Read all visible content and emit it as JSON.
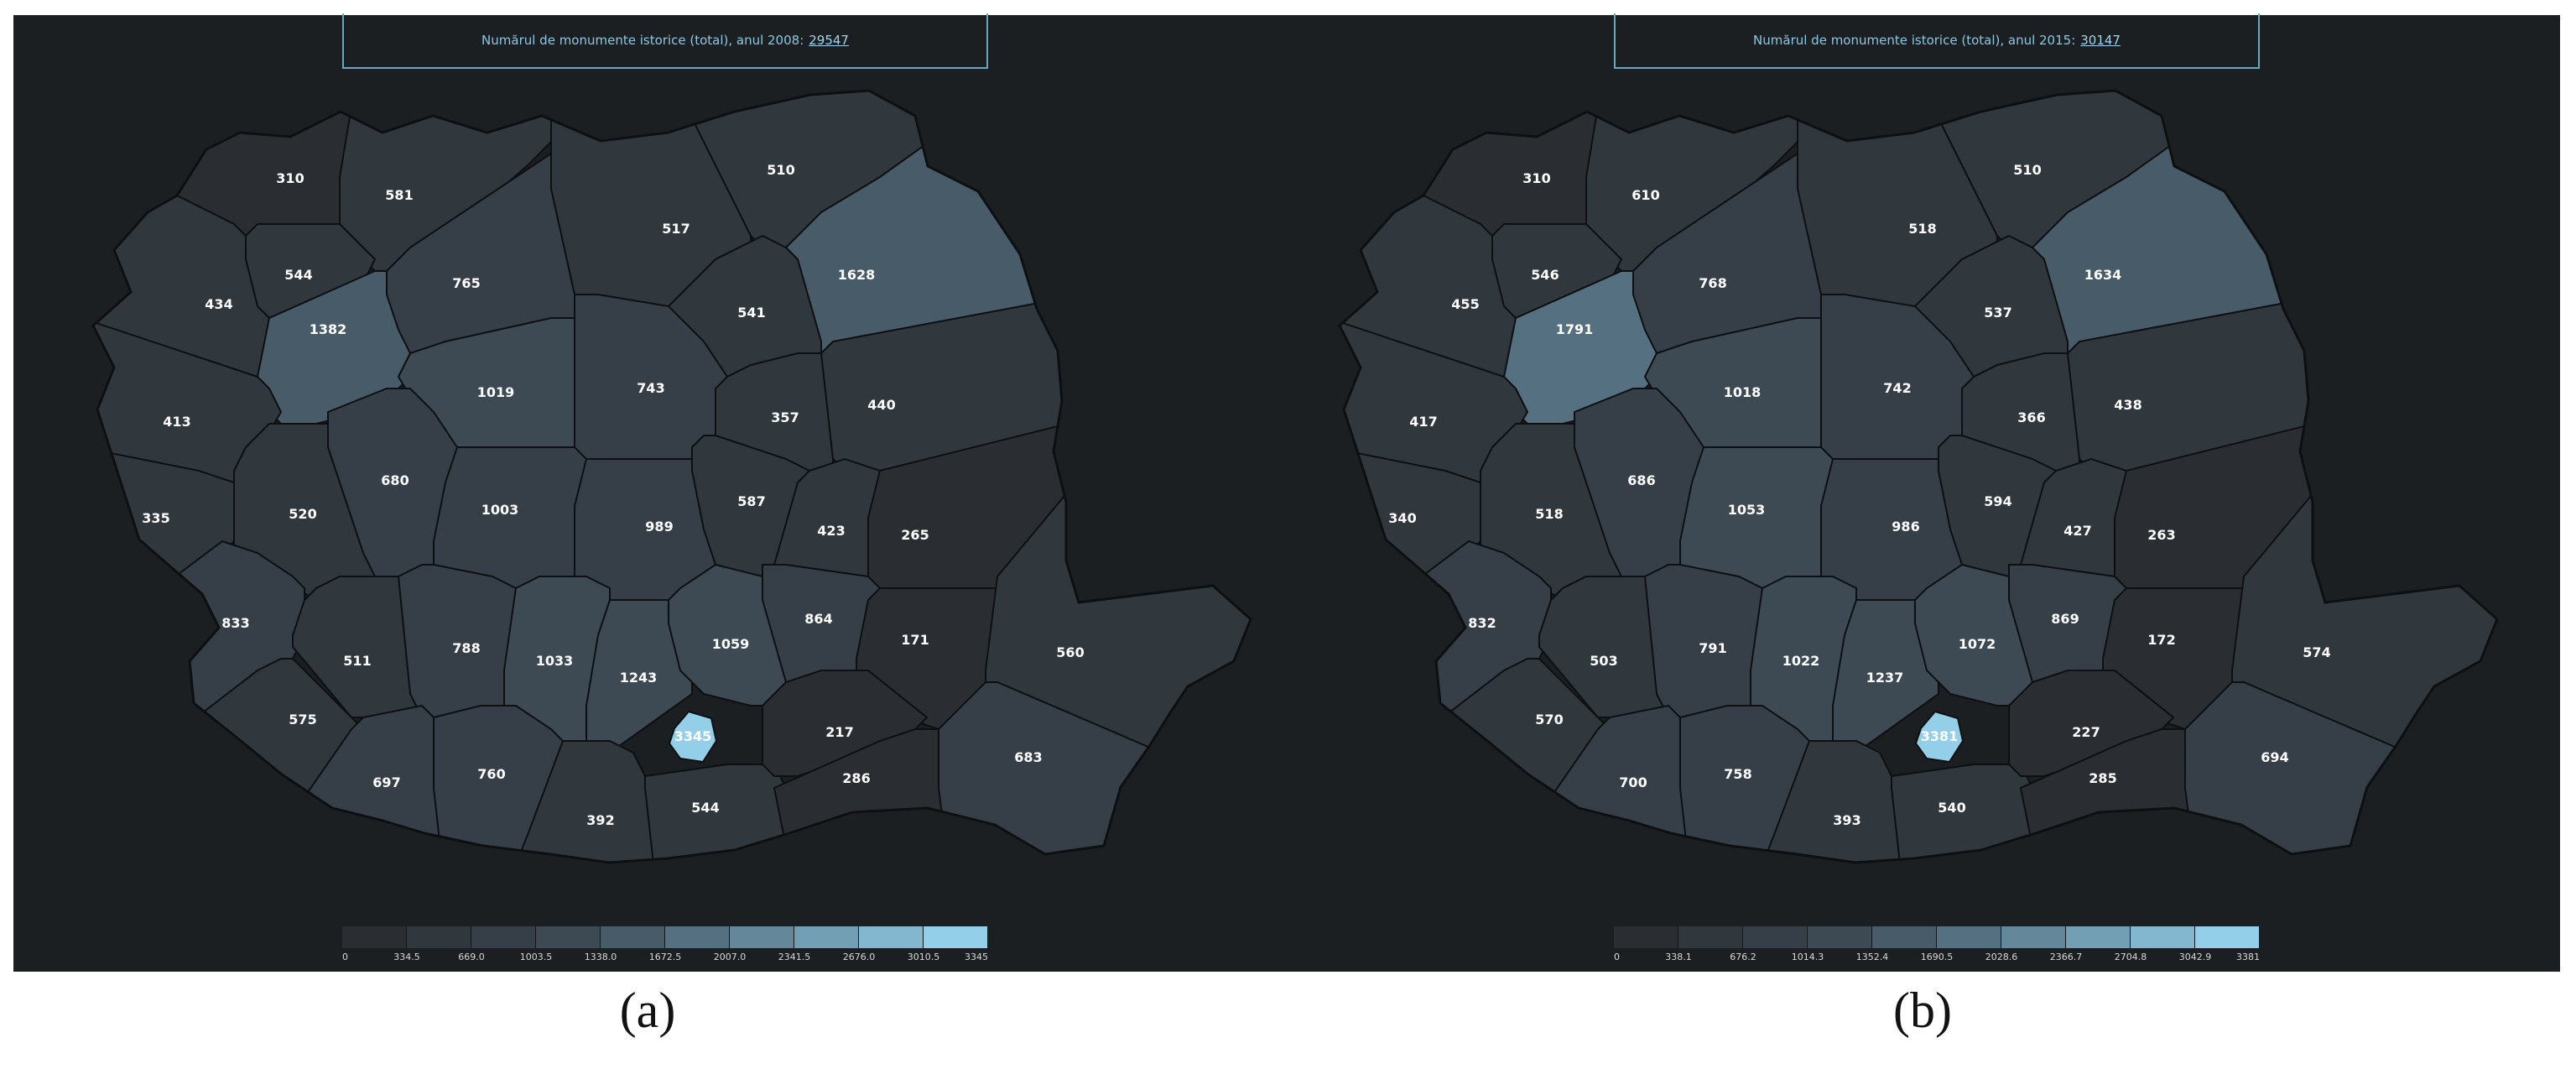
{
  "panels": [
    {
      "id": "a",
      "caption": "(a)",
      "header_text": "Numărul de monumente istorice (total), anul 2008:",
      "header_total": "29547",
      "legend_ticks": [
        "0",
        "334.5",
        "669.0",
        "1003.5",
        "1338.0",
        "1672.5",
        "2007.0",
        "2341.5",
        "2676.0",
        "3010.5",
        "3345"
      ],
      "max": 3345,
      "values": {
        "SM": 310,
        "MM": 581,
        "SV": 510,
        "BH": 434,
        "SJ": 544,
        "CJ": 1382,
        "BN": 765,
        "BT": 517,
        "IS": 1628,
        "NT": 541,
        "AR": 413,
        "MS": 1019,
        "HR": 743,
        "BC": 357,
        "VS": 440,
        "TM": 335,
        "HD": 520,
        "AB": 680,
        "SB": 1003,
        "BV": 989,
        "CV": 587,
        "VN": 423,
        "GL": 265,
        "CS": 833,
        "GJ": 511,
        "VL": 788,
        "AG": 1033,
        "DB": 1243,
        "PH": 1059,
        "BZ": 864,
        "BR": 171,
        "TL": 560,
        "MH": 575,
        "DJ": 697,
        "OT": 760,
        "TR": 392,
        "GR": 544,
        "B": 3345,
        "IL": 217,
        "CL": 286,
        "CT": 683
      }
    },
    {
      "id": "b",
      "caption": "(b)",
      "header_text": "Numărul de monumente istorice (total), anul 2015:",
      "header_total": "30147",
      "legend_ticks": [
        "0",
        "338.1",
        "676.2",
        "1014.3",
        "1352.4",
        "1690.5",
        "2028.6",
        "2366.7",
        "2704.8",
        "3042.9",
        "3381"
      ],
      "max": 3381,
      "values": {
        "SM": 310,
        "MM": 610,
        "SV": 510,
        "BH": 455,
        "SJ": 546,
        "CJ": 1791,
        "BN": 768,
        "BT": 518,
        "IS": 1634,
        "NT": 537,
        "AR": 417,
        "MS": 1018,
        "HR": 742,
        "BC": 366,
        "VS": 438,
        "TM": 340,
        "HD": 518,
        "AB": 686,
        "SB": 1053,
        "BV": 986,
        "CV": 594,
        "VN": 427,
        "GL": 263,
        "CS": 832,
        "GJ": 503,
        "VL": 791,
        "AG": 1022,
        "DB": 1237,
        "PH": 1072,
        "BZ": 869,
        "BR": 172,
        "TL": 574,
        "MH": 570,
        "DJ": 700,
        "OT": 758,
        "TR": 393,
        "GR": 540,
        "B": 3381,
        "IL": 227,
        "CL": 285,
        "CT": 694
      }
    }
  ],
  "colors": {
    "scale": [
      "#2a2e32",
      "#30373d",
      "#363f47",
      "#3d4a54",
      "#475b68",
      "#557080",
      "#64879a",
      "#739fb5",
      "#83b7cf",
      "#93cfe8"
    ],
    "border": "#0d0f11",
    "label": "#ffffff"
  }
}
